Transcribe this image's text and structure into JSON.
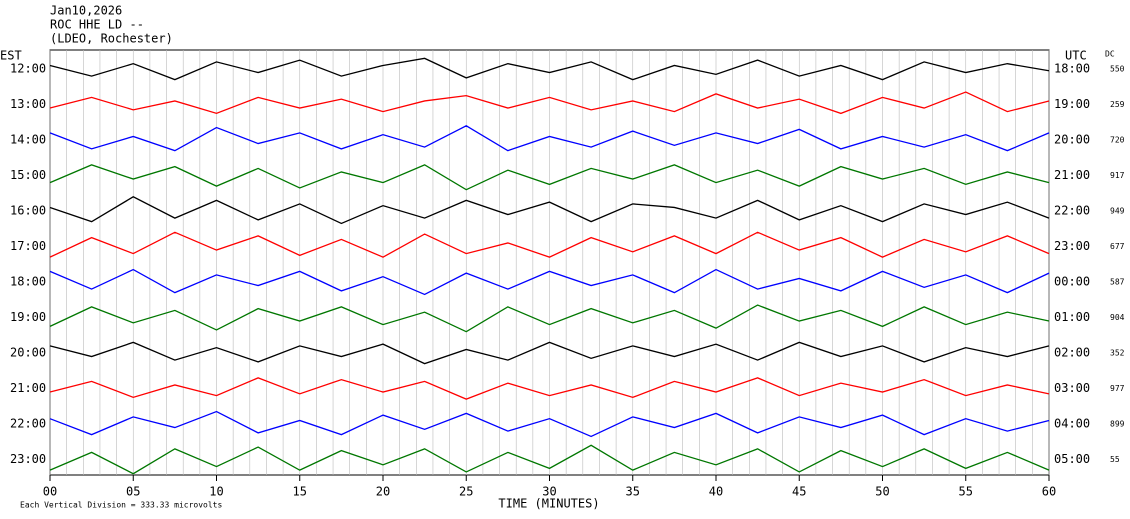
{
  "chart_data": {
    "type": "helicorder",
    "title_lines": [
      "Jan10,2026",
      "ROC HHE LD --",
      "(LDEO, Rochester)"
    ],
    "left_axis_label": "EST",
    "right_axis_label": "UTC",
    "dc_label": "DC",
    "x_label": "TIME (MINUTES)",
    "note": "Each Vertical Division = 333.33 microvolts",
    "xlim": [
      0,
      60
    ],
    "xgrid_step": 1,
    "xticks": [
      {
        "value": 0,
        "label": "00"
      },
      {
        "value": 5,
        "label": "05"
      },
      {
        "value": 10,
        "label": "10"
      },
      15,
      20,
      25,
      30,
      35,
      40,
      45,
      50,
      55,
      60
    ],
    "x": [
      0,
      2.5,
      5,
      7.5,
      10,
      12.5,
      15,
      17.5,
      20,
      22.5,
      25,
      27.5,
      30,
      32.5,
      35,
      37.5,
      40,
      42.5,
      45,
      47.5,
      50,
      52.5,
      55,
      57.5,
      60
    ],
    "rows": [
      {
        "local": "12:00",
        "utc": "18:00",
        "dc": 550,
        "color": "#000000",
        "values": [
          0.1,
          -0.2,
          0.15,
          -0.3,
          0.2,
          -0.1,
          0.25,
          -0.2,
          0.1,
          0.3,
          -0.25,
          0.15,
          -0.1,
          0.2,
          -0.3,
          0.1,
          -0.15,
          0.25,
          -0.2,
          0.1,
          -0.3,
          0.2,
          -0.1,
          0.15,
          -0.05
        ]
      },
      {
        "local": "13:00",
        "utc": "19:00",
        "dc": 259,
        "color": "#ff0000",
        "values": [
          -0.1,
          0.2,
          -0.15,
          0.1,
          -0.25,
          0.2,
          -0.1,
          0.15,
          -0.2,
          0.1,
          0.25,
          -0.1,
          0.2,
          -0.15,
          0.1,
          -0.2,
          0.3,
          -0.1,
          0.15,
          -0.25,
          0.2,
          -0.1,
          0.35,
          -0.2,
          0.1
        ]
      },
      {
        "local": "14:00",
        "utc": "20:00",
        "dc": 720,
        "color": "#0000ff",
        "values": [
          0.2,
          -0.25,
          0.1,
          -0.3,
          0.35,
          -0.1,
          0.2,
          -0.25,
          0.15,
          -0.2,
          0.4,
          -0.3,
          0.1,
          -0.2,
          0.25,
          -0.15,
          0.2,
          -0.1,
          0.3,
          -0.25,
          0.1,
          -0.2,
          0.15,
          -0.3,
          0.2
        ]
      },
      {
        "local": "15:00",
        "utc": "21:00",
        "dc": 917,
        "color": "#007700",
        "values": [
          -0.2,
          0.3,
          -0.1,
          0.25,
          -0.3,
          0.2,
          -0.35,
          0.1,
          -0.2,
          0.3,
          -0.4,
          0.15,
          -0.25,
          0.2,
          -0.1,
          0.3,
          -0.2,
          0.15,
          -0.3,
          0.25,
          -0.1,
          0.2,
          -0.25,
          0.1,
          -0.2
        ]
      },
      {
        "local": "16:00",
        "utc": "22:00",
        "dc": 949,
        "color": "#000000",
        "values": [
          0.1,
          -0.3,
          0.4,
          -0.2,
          0.3,
          -0.25,
          0.2,
          -0.35,
          0.15,
          -0.2,
          0.3,
          -0.1,
          0.25,
          -0.3,
          0.2,
          0.1,
          -0.2,
          0.3,
          -0.25,
          0.15,
          -0.3,
          0.2,
          -0.1,
          0.25,
          -0.2
        ]
      },
      {
        "local": "17:00",
        "utc": "23:00",
        "dc": 677,
        "color": "#ff0000",
        "values": [
          -0.3,
          0.25,
          -0.2,
          0.4,
          -0.1,
          0.3,
          -0.25,
          0.2,
          -0.3,
          0.35,
          -0.2,
          0.1,
          -0.3,
          0.25,
          -0.15,
          0.3,
          -0.2,
          0.4,
          -0.1,
          0.25,
          -0.3,
          0.2,
          -0.15,
          0.3,
          -0.2
        ]
      },
      {
        "local": "18:00",
        "utc": "00:00",
        "dc": 587,
        "color": "#0000ff",
        "values": [
          0.3,
          -0.2,
          0.35,
          -0.3,
          0.2,
          -0.1,
          0.3,
          -0.25,
          0.15,
          -0.35,
          0.25,
          -0.2,
          0.3,
          -0.1,
          0.2,
          -0.3,
          0.35,
          -0.2,
          0.1,
          -0.25,
          0.3,
          -0.15,
          0.2,
          -0.3,
          0.25
        ]
      },
      {
        "local": "19:00",
        "utc": "01:00",
        "dc": 904,
        "color": "#007700",
        "values": [
          -0.25,
          0.3,
          -0.15,
          0.2,
          -0.35,
          0.25,
          -0.1,
          0.3,
          -0.2,
          0.15,
          -0.4,
          0.3,
          -0.2,
          0.25,
          -0.15,
          0.2,
          -0.3,
          0.35,
          -0.1,
          0.2,
          -0.25,
          0.3,
          -0.2,
          0.15,
          -0.1
        ]
      },
      {
        "local": "20:00",
        "utc": "02:00",
        "dc": 352,
        "color": "#000000",
        "values": [
          0.2,
          -0.1,
          0.3,
          -0.2,
          0.15,
          -0.25,
          0.2,
          -0.1,
          0.25,
          -0.3,
          0.1,
          -0.2,
          0.3,
          -0.15,
          0.2,
          -0.1,
          0.25,
          -0.2,
          0.3,
          -0.1,
          0.2,
          -0.25,
          0.15,
          -0.1,
          0.2
        ]
      },
      {
        "local": "21:00",
        "utc": "03:00",
        "dc": 977,
        "color": "#ff0000",
        "values": [
          -0.1,
          0.2,
          -0.25,
          0.1,
          -0.2,
          0.3,
          -0.15,
          0.25,
          -0.1,
          0.2,
          -0.3,
          0.15,
          -0.2,
          0.1,
          -0.25,
          0.2,
          -0.1,
          0.3,
          -0.2,
          0.15,
          -0.1,
          0.25,
          -0.2,
          0.1,
          -0.15
        ]
      },
      {
        "local": "22:00",
        "utc": "04:00",
        "dc": 899,
        "color": "#0000ff",
        "values": [
          0.15,
          -0.3,
          0.2,
          -0.1,
          0.35,
          -0.25,
          0.1,
          -0.3,
          0.25,
          -0.15,
          0.3,
          -0.2,
          0.15,
          -0.35,
          0.2,
          -0.1,
          0.3,
          -0.25,
          0.2,
          -0.1,
          0.25,
          -0.3,
          0.15,
          -0.2,
          0.1
        ]
      },
      {
        "local": "23:00",
        "utc": "05:00",
        "dc": 55,
        "color": "#007700",
        "values": [
          -0.3,
          0.2,
          -0.4,
          0.3,
          -0.2,
          0.35,
          -0.3,
          0.25,
          -0.15,
          0.3,
          -0.35,
          0.2,
          -0.25,
          0.4,
          -0.3,
          0.2,
          -0.15,
          0.3,
          -0.35,
          0.25,
          -0.2,
          0.3,
          -0.25,
          0.2,
          -0.3
        ]
      }
    ]
  }
}
